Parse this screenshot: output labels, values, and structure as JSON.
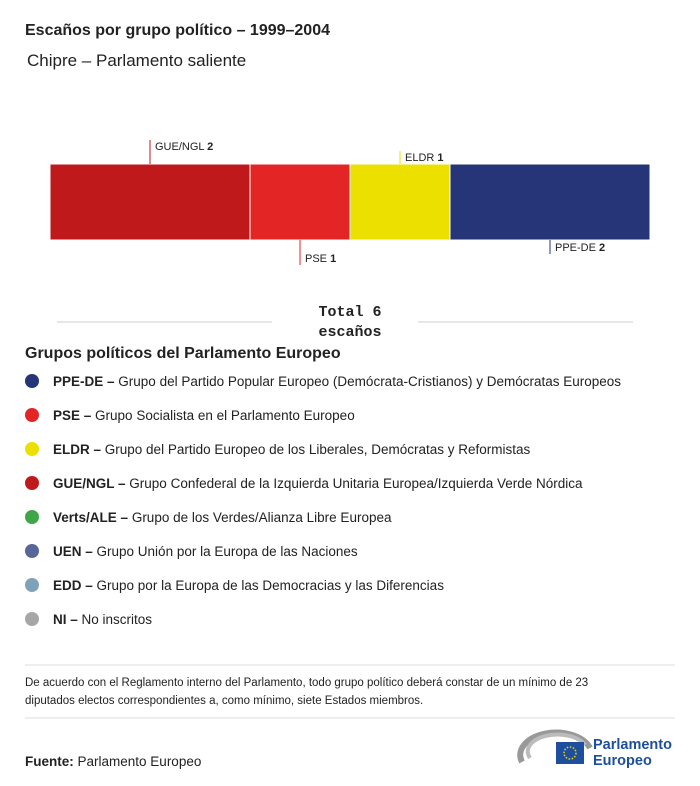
{
  "chart_data": {
    "type": "stacked-bar",
    "title": "Escaños por grupo político – 1999–2004",
    "subtitle": "Chipre – Parlamento saliente",
    "categories": [
      "GUE/NGL",
      "PSE",
      "ELDR",
      "PPE-DE"
    ],
    "values": [
      2,
      1,
      1,
      2
    ],
    "colors": [
      "#c0191c",
      "#e32526",
      "#ebe000",
      "#263578"
    ],
    "total_label": "Total",
    "total": 6,
    "total_unit": "escaños"
  },
  "legend": {
    "title": "Grupos políticos del Parlamento Europeo",
    "items": [
      {
        "abbr": "PPE-DE –",
        "text": "Grupo del Partido Popular Europeo (Demócrata-Cristianos) y Demócratas Europeos",
        "color": "#263578"
      },
      {
        "abbr": "PSE –",
        "text": "Grupo Socialista en el Parlamento Europeo",
        "color": "#e32526"
      },
      {
        "abbr": "ELDR –",
        "text": "Grupo del Partido Europeo de los Liberales, Demócratas y Reformistas",
        "color": "#ebe000"
      },
      {
        "abbr": "GUE/NGL –",
        "text": "Grupo Confederal de la Izquierda Unitaria Europea/Izquierda Verde Nórdica",
        "color": "#c0191c"
      },
      {
        "abbr": "Verts/ALE –",
        "text": "Grupo de los Verdes/Alianza Libre Europea",
        "color": "#3fa648"
      },
      {
        "abbr": "UEN –",
        "text": "Grupo Unión por la Europa de las Naciones",
        "color": "#57679a"
      },
      {
        "abbr": "EDD –",
        "text": "Grupo por la Europa de las Democracias y las Diferencias",
        "color": "#7ea3b9"
      },
      {
        "abbr": "NI –",
        "text": "No inscritos",
        "color": "#a6a6a6"
      }
    ]
  },
  "note": [
    "De acuerdo con el Reglamento interno del Parlamento, todo grupo político deberá constar de un mínimo de 23",
    "diputados electos correspondientes a, como mínimo, siete Estados miembros."
  ],
  "source": {
    "label": "Fuente:",
    "text": "Parlamento Europeo"
  },
  "logo": [
    "Parlamento",
    "Europeo"
  ]
}
